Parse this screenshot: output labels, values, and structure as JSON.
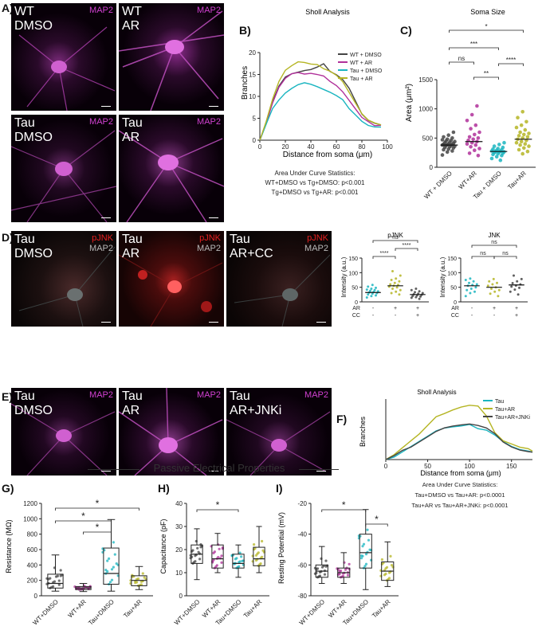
{
  "panels": {
    "a": "A)",
    "b": "B)",
    "c": "C)",
    "d": "D)",
    "e": "E)",
    "f": "F)",
    "g": "G)",
    "h": "H)",
    "i": "I)"
  },
  "micro_a": [
    {
      "title": "WT\nDMSO",
      "stain": "MAP2"
    },
    {
      "title": "WT\nAR",
      "stain": "MAP2"
    },
    {
      "title": "Tau\nDMSO",
      "stain": "MAP2"
    },
    {
      "title": "Tau\nAR",
      "stain": "MAP2"
    }
  ],
  "micro_d": [
    {
      "title": "Tau\nDMSO",
      "stain1": "pJNK",
      "stain2": "MAP2"
    },
    {
      "title": "Tau\nAR",
      "stain1": "pJNK",
      "stain2": "MAP2"
    },
    {
      "title": "Tau\nAR+CC",
      "stain1": "pJNK",
      "stain2": "MAP2"
    }
  ],
  "micro_e": [
    {
      "title": "Tau\nDMSO",
      "stain": "MAP2"
    },
    {
      "title": "Tau\nAR",
      "stain": "MAP2"
    },
    {
      "title": "Tau\nAR+JNKi",
      "stain": "MAP2"
    }
  ],
  "colors": {
    "map2": "#d040d0",
    "pjnk": "#e52020",
    "map2_grey": "#b8b8b8",
    "wt_dmso": "#444444",
    "wt_ar": "#b0309a",
    "tau_dmso": "#1ab5c0",
    "tau_ar": "#b5b524"
  },
  "stats_b": {
    "heading": "Area Under Curve Statistics:",
    "line1": "WT+DMSO vs Tg+DMSO: p<0.001",
    "line2": "Tg+DMSO vs Tg+AR: p<0.001"
  },
  "stats_f": {
    "heading": "Area Under Curve Statistics:",
    "line1": "Tau+DMSO vs Tau+AR: p<0.0001",
    "line2": "Tau+AR vs Tau+AR+JNKi: p<0.0001"
  },
  "banner": "Passive Electrical Properties",
  "chart_data": [
    {
      "id": "B",
      "type": "line",
      "title": "Sholl Analysis",
      "xlabel": "Distance from soma (μm)",
      "ylabel": "Branches",
      "xlim": [
        0,
        100
      ],
      "ylim": [
        0,
        20
      ],
      "xticks": [
        0,
        20,
        40,
        60,
        80,
        100
      ],
      "yticks": [
        0,
        5,
        10,
        15,
        20
      ],
      "legend": "top-right",
      "series": [
        {
          "name": "WT + DMSO",
          "color": "#444444",
          "x": [
            0,
            5,
            10,
            15,
            20,
            25,
            30,
            35,
            40,
            45,
            50,
            55,
            60,
            65,
            70,
            75,
            80,
            85,
            90,
            95
          ],
          "y": [
            0,
            4,
            9,
            12.5,
            14.5,
            15.2,
            15.5,
            15.8,
            16,
            16.5,
            17.2,
            16,
            15.2,
            14,
            12,
            9,
            6,
            4.5,
            3.8,
            3.5
          ]
        },
        {
          "name": "WT + AR",
          "color": "#b0309a",
          "x": [
            0,
            5,
            10,
            15,
            20,
            25,
            30,
            35,
            40,
            45,
            50,
            55,
            60,
            65,
            70,
            75,
            80,
            85,
            90,
            95
          ],
          "y": [
            0,
            4,
            8.5,
            12,
            14,
            15,
            15.2,
            15.4,
            15.5,
            15.2,
            14.8,
            13.5,
            12.5,
            11,
            9,
            7,
            5,
            4,
            3.6,
            3.4
          ]
        },
        {
          "name": "Tau + DMSO",
          "color": "#1ab5c0",
          "x": [
            0,
            5,
            10,
            15,
            20,
            25,
            30,
            35,
            40,
            45,
            50,
            55,
            60,
            65,
            70,
            75,
            80,
            85,
            90,
            95
          ],
          "y": [
            0,
            3.5,
            7,
            9.5,
            11,
            12,
            12.8,
            13.2,
            12.8,
            12.2,
            11.5,
            10.8,
            10,
            9,
            7.5,
            6,
            4.5,
            3.5,
            3.1,
            3
          ]
        },
        {
          "name": "Tau + AR",
          "color": "#b5b524",
          "x": [
            0,
            5,
            10,
            15,
            20,
            25,
            30,
            35,
            40,
            45,
            50,
            55,
            60,
            65,
            70,
            75,
            80,
            85,
            90,
            95
          ],
          "y": [
            0,
            4.5,
            9.5,
            13.5,
            16,
            17,
            17.8,
            17.6,
            17.2,
            17,
            16.6,
            16,
            15,
            13.5,
            11,
            8.5,
            6,
            4.5,
            3.8,
            3.5
          ]
        }
      ]
    },
    {
      "id": "C",
      "type": "scatter",
      "title": "Soma Size",
      "ylabel": "Area (μm²)",
      "ylim": [
        0,
        1500
      ],
      "yticks": [
        0,
        500,
        1000,
        1500
      ],
      "categories": [
        "WT + DMSO",
        "WT+AR",
        "Tau + DMSO",
        "Tau+AR"
      ],
      "means": [
        380,
        440,
        270,
        480
      ],
      "points": [
        [
          210,
          260,
          280,
          300,
          310,
          330,
          340,
          350,
          360,
          370,
          375,
          380,
          385,
          390,
          395,
          400,
          410,
          420,
          430,
          440,
          450,
          460,
          470,
          480,
          500,
          520,
          550,
          600
        ],
        [
          200,
          240,
          290,
          320,
          350,
          380,
          400,
          420,
          440,
          460,
          480,
          500,
          520,
          560,
          600,
          660,
          720,
          800,
          900,
          1050
        ],
        [
          120,
          150,
          180,
          200,
          220,
          230,
          240,
          250,
          260,
          265,
          270,
          275,
          280,
          290,
          300,
          310,
          320,
          340,
          360,
          390,
          420
        ],
        [
          230,
          270,
          300,
          330,
          360,
          380,
          400,
          420,
          440,
          460,
          480,
          500,
          520,
          540,
          560,
          580,
          600,
          640,
          680,
          720,
          780,
          850,
          950
        ]
      ],
      "sig": [
        {
          "from": 0,
          "to": 3,
          "label": "*"
        },
        {
          "from": 0,
          "to": 2,
          "label": "***"
        },
        {
          "from": 2,
          "to": 3,
          "label": "****"
        },
        {
          "from": 0,
          "to": 1,
          "label": "ns"
        },
        {
          "from": 1,
          "to": 2,
          "label": "**"
        }
      ]
    },
    {
      "id": "D-pJNK",
      "type": "scatter",
      "title": "pJNK",
      "ylabel": "Intensity (a.u.)",
      "ylim": [
        0,
        150
      ],
      "yticks": [
        0,
        50,
        100,
        150
      ],
      "rows": [
        {
          "label": "AR",
          "values": [
            "-",
            "+",
            "+"
          ]
        },
        {
          "label": "CC",
          "values": [
            "-",
            "-",
            "+"
          ]
        }
      ],
      "means": [
        32,
        55,
        25
      ],
      "points": [
        [
          15,
          20,
          22,
          25,
          28,
          30,
          32,
          34,
          36,
          38,
          40,
          42,
          45,
          48,
          52,
          58
        ],
        [
          25,
          30,
          35,
          40,
          45,
          50,
          52,
          55,
          58,
          60,
          65,
          70,
          75,
          80,
          90,
          105
        ],
        [
          10,
          14,
          16,
          18,
          20,
          22,
          24,
          26,
          28,
          30,
          33,
          36,
          40,
          45
        ]
      ],
      "sig": [
        {
          "from": 0,
          "to": 1,
          "label": "****"
        },
        {
          "from": 1,
          "to": 2,
          "label": "****"
        },
        {
          "from": 0,
          "to": 2,
          "label": "ns"
        }
      ]
    },
    {
      "id": "D-JNK",
      "type": "scatter",
      "title": "JNK",
      "ylabel": "Intensity (a.u.)",
      "ylim": [
        0,
        150
      ],
      "yticks": [
        0,
        50,
        100,
        150
      ],
      "rows": [
        {
          "label": "AR",
          "values": [
            "-",
            "+",
            "+"
          ]
        },
        {
          "label": "CC",
          "values": [
            "-",
            "-",
            "+"
          ]
        }
      ],
      "means": [
        55,
        50,
        58
      ],
      "points": [
        [
          20,
          30,
          35,
          40,
          45,
          50,
          55,
          58,
          60,
          65,
          70,
          75,
          80
        ],
        [
          20,
          28,
          35,
          40,
          45,
          50,
          55,
          60,
          65,
          70,
          78
        ],
        [
          25,
          35,
          42,
          48,
          52,
          56,
          60,
          64,
          70,
          78,
          90
        ]
      ],
      "sig": [
        {
          "from": 0,
          "to": 1,
          "label": "ns"
        },
        {
          "from": 1,
          "to": 2,
          "label": "ns"
        },
        {
          "from": 0,
          "to": 2,
          "label": "ns"
        }
      ]
    },
    {
      "id": "F",
      "type": "line",
      "title": "Sholl Analysis",
      "xlabel": "Distance from soma (μm)",
      "ylabel": "Branches",
      "xlim": [
        0,
        175
      ],
      "ylim": [
        0,
        18
      ],
      "xticks": [
        0,
        50,
        100,
        150
      ],
      "legend": "top-right",
      "series": [
        {
          "name": "Tau",
          "color": "#1ab5c0",
          "x": [
            0,
            10,
            20,
            30,
            40,
            50,
            60,
            70,
            80,
            90,
            100,
            110,
            120,
            130,
            140,
            150,
            160,
            170,
            175
          ],
          "y": [
            0,
            1,
            2.5,
            4,
            5.5,
            7,
            8.5,
            9.3,
            9.6,
            9.8,
            10.2,
            9.5,
            9,
            7.5,
            5.5,
            4,
            3,
            2.5,
            2.2
          ]
        },
        {
          "name": "Tau+AR",
          "color": "#b5b524",
          "x": [
            0,
            10,
            20,
            30,
            40,
            50,
            60,
            70,
            80,
            90,
            100,
            110,
            120,
            130,
            140,
            150,
            160,
            170,
            175
          ],
          "y": [
            0,
            1.5,
            3.5,
            5.5,
            7.5,
            10,
            12.5,
            14,
            15,
            15.8,
            16.3,
            16,
            13,
            8,
            5.5,
            4.5,
            3.5,
            3,
            2.5
          ]
        },
        {
          "name": "Tau+AR+JNKi",
          "color": "#444444",
          "x": [
            0,
            10,
            20,
            30,
            40,
            50,
            60,
            70,
            80,
            90,
            100,
            110,
            120,
            130,
            140,
            150,
            160,
            170,
            175
          ],
          "y": [
            0,
            1,
            2.5,
            4,
            5.5,
            7,
            8.5,
            9.5,
            10,
            10.3,
            10.5,
            10,
            9.2,
            7.5,
            5.5,
            4,
            3,
            2.5,
            2.2
          ]
        }
      ]
    },
    {
      "id": "G",
      "type": "box",
      "ylabel": "Resistance (MΩ)",
      "ylim": [
        0,
        1200
      ],
      "yticks": [
        0,
        200,
        400,
        600,
        800,
        1000,
        1200
      ],
      "categories": [
        "WT+DMSO",
        "WT+AR",
        "Tau+DMSO",
        "Tau+AR"
      ],
      "boxes": [
        {
          "min": 60,
          "q1": 100,
          "median": 160,
          "q3": 280,
          "max": 530
        },
        {
          "min": 55,
          "q1": 80,
          "median": 100,
          "q3": 120,
          "max": 160
        },
        {
          "min": 60,
          "q1": 150,
          "median": 290,
          "q3": 620,
          "max": 990
        },
        {
          "min": 80,
          "q1": 130,
          "median": 200,
          "q3": 260,
          "max": 380
        }
      ],
      "sig": [
        {
          "from": 0,
          "to": 2,
          "label": "*"
        },
        {
          "from": 0,
          "to": 3,
          "label": "*"
        },
        {
          "from": 1,
          "to": 2,
          "label": "*"
        }
      ]
    },
    {
      "id": "H",
      "type": "box",
      "ylabel": "Capacitance (pF)",
      "ylim": [
        0,
        40
      ],
      "yticks": [
        0,
        10,
        20,
        30,
        40
      ],
      "categories": [
        "WT+DMSO",
        "WT+AR",
        "Tau+DMSO",
        "Tau+AR"
      ],
      "boxes": [
        {
          "min": 7,
          "q1": 14,
          "median": 18,
          "q3": 22,
          "max": 29
        },
        {
          "min": 10,
          "q1": 12,
          "median": 16,
          "q3": 22,
          "max": 27
        },
        {
          "min": 8,
          "q1": 12,
          "median": 14,
          "q3": 18,
          "max": 22
        },
        {
          "min": 10,
          "q1": 13,
          "median": 16,
          "q3": 21,
          "max": 30
        }
      ],
      "sig": [
        {
          "from": 0,
          "to": 2,
          "label": "*"
        }
      ]
    },
    {
      "id": "I",
      "type": "box",
      "ylabel": "Resting Potential (mV)",
      "ylim": [
        -80,
        -20
      ],
      "yticks": [
        -80,
        -60,
        -40,
        -20
      ],
      "categories": [
        "WT+DMSO",
        "WT+AR",
        "Tau+DMSO",
        "Tau+AR"
      ],
      "boxes": [
        {
          "min": -72,
          "q1": -68,
          "median": -64,
          "q3": -60,
          "max": -48
        },
        {
          "min": -72,
          "q1": -68,
          "median": -65,
          "q3": -62,
          "max": -52
        },
        {
          "min": -76,
          "q1": -62,
          "median": -52,
          "q3": -40,
          "max": -24
        },
        {
          "min": -74,
          "q1": -70,
          "median": -64,
          "q3": -58,
          "max": -45
        }
      ],
      "sig": [
        {
          "from": 0,
          "to": 2,
          "label": "*"
        },
        {
          "from": 2,
          "to": 3,
          "label": "*"
        }
      ]
    }
  ]
}
